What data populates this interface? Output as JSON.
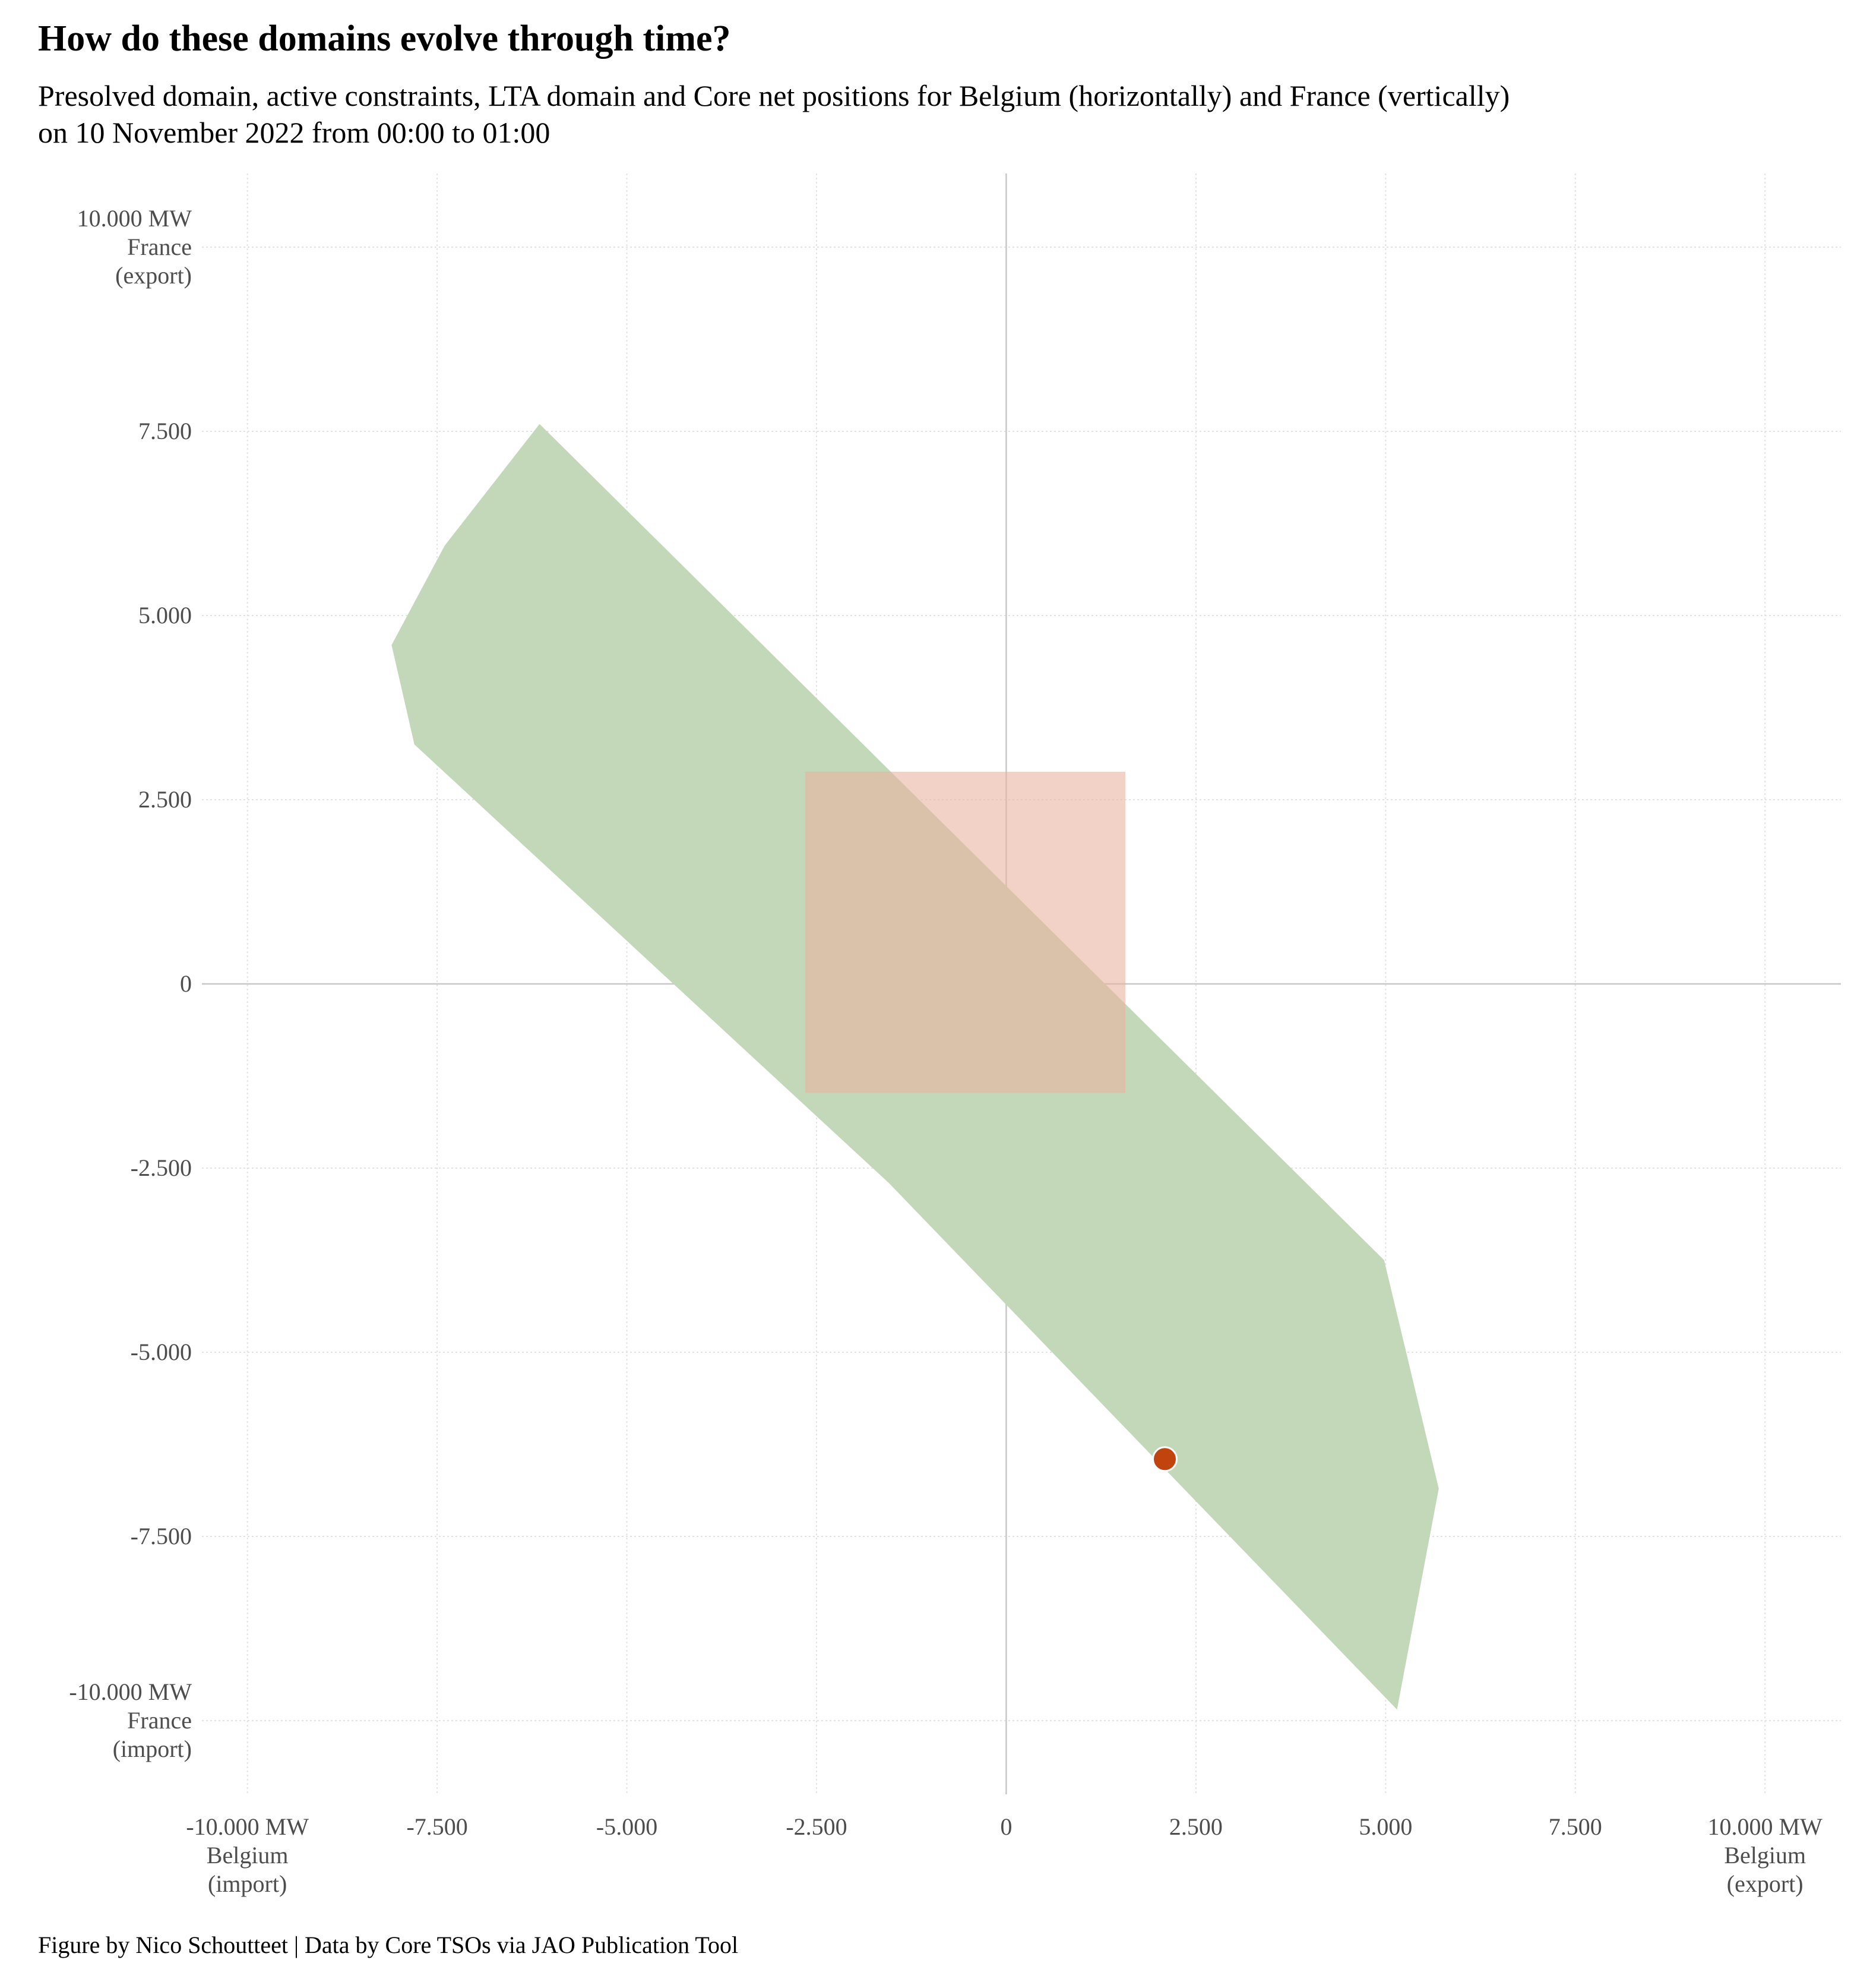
{
  "title": "How do these domains evolve through time?",
  "subtitle_lines": [
    "Presolved domain, active constraints, LTA domain and Core net positions for Belgium (horizontally) and France (vertically)",
    "on 10 November 2022 from 00:00 to 01:00"
  ],
  "caption": "Figure by Nico Schoutteet | Data by Core TSOs via JAO Publication Tool",
  "colors": {
    "presolved_domain": "#c3d7b9",
    "lta_domain": "#e9b4a0",
    "net_position": "#c1440e",
    "grid": "#e3e3e3",
    "zero_line": "#c8c8c8",
    "tick_text": "#4d4d4d"
  },
  "chart_data": {
    "type": "scatter",
    "xlim": [
      -10600,
      11000
    ],
    "ylim": [
      -11000,
      11000
    ],
    "grid": true,
    "x_ticks": [
      {
        "value": -10000,
        "label": [
          "-10.000 MW",
          "Belgium",
          "(import)"
        ]
      },
      {
        "value": -7500,
        "label": [
          "-7.500"
        ]
      },
      {
        "value": -5000,
        "label": [
          "-5.000"
        ]
      },
      {
        "value": -2500,
        "label": [
          "-2.500"
        ]
      },
      {
        "value": 0,
        "label": [
          "0"
        ]
      },
      {
        "value": 2500,
        "label": [
          "2.500"
        ]
      },
      {
        "value": 5000,
        "label": [
          "5.000"
        ]
      },
      {
        "value": 7500,
        "label": [
          "7.500"
        ]
      },
      {
        "value": 10000,
        "label": [
          "10.000 MW",
          "Belgium",
          "(export)"
        ]
      }
    ],
    "y_ticks": [
      {
        "value": 10000,
        "label": [
          "10.000 MW",
          "France",
          "(export)"
        ]
      },
      {
        "value": 7500,
        "label": [
          "7.500"
        ]
      },
      {
        "value": 5000,
        "label": [
          "5.000"
        ]
      },
      {
        "value": 2500,
        "label": [
          "2.500"
        ]
      },
      {
        "value": 0,
        "label": [
          "0"
        ]
      },
      {
        "value": -2500,
        "label": [
          "-2.500"
        ]
      },
      {
        "value": -5000,
        "label": [
          "-5.000"
        ]
      },
      {
        "value": -7500,
        "label": [
          "-7.500"
        ]
      },
      {
        "value": -10000,
        "label": [
          "-10.000 MW",
          "France",
          "(import)"
        ]
      }
    ],
    "presolved_domain": [
      [
        -6150,
        7600
      ],
      [
        -7400,
        5950
      ],
      [
        -8100,
        4600
      ],
      [
        -7800,
        3250
      ],
      [
        -1550,
        -2700
      ],
      [
        5150,
        -9850
      ],
      [
        5700,
        -6850
      ],
      [
        4980,
        -3750
      ]
    ],
    "lta_domain": {
      "x": [
        -2650,
        1570
      ],
      "y": [
        -1480,
        2880
      ]
    },
    "net_positions": [
      {
        "x": 2090,
        "y": -6450
      }
    ]
  }
}
